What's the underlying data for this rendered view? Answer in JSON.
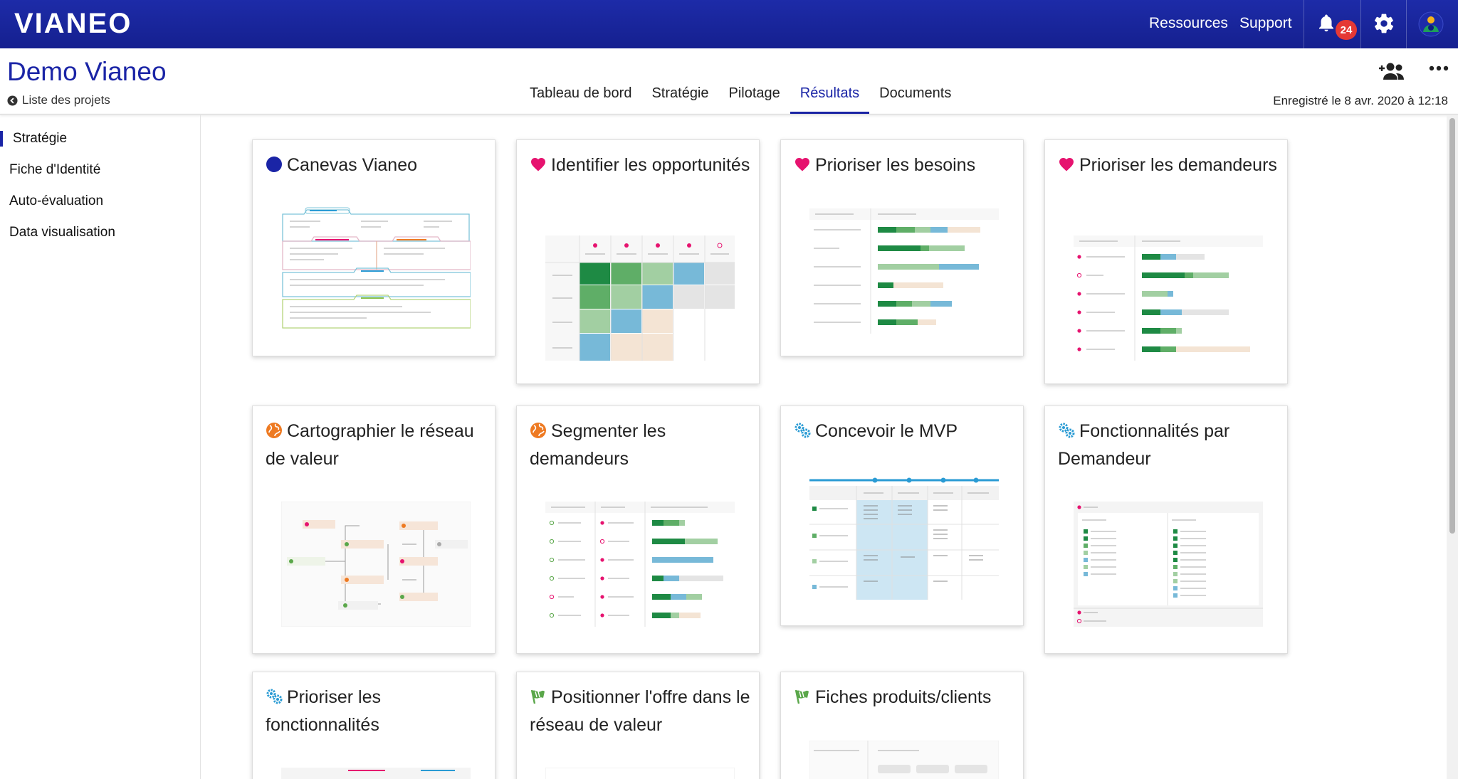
{
  "topbar": {
    "logo": "VIANEO",
    "links": [
      "Ressources",
      "Support"
    ],
    "notifications_count": "24",
    "icons": [
      "bell-icon",
      "gear-icon",
      "avatar-icon"
    ]
  },
  "project": {
    "title": "Demo Vianeo",
    "back_label": "Liste des projets",
    "saved_label": "Enregistré le 8 avr. 2020 à 12:18"
  },
  "tabs": [
    {
      "label": "Tableau de bord",
      "active": false
    },
    {
      "label": "Stratégie",
      "active": false
    },
    {
      "label": "Pilotage",
      "active": false
    },
    {
      "label": "Résultats",
      "active": true
    },
    {
      "label": "Documents",
      "active": false
    }
  ],
  "sidebar": {
    "items": [
      {
        "label": "Stratégie",
        "active": true
      },
      {
        "label": "Fiche d'Identité",
        "active": false
      },
      {
        "label": "Auto-évaluation",
        "active": false
      },
      {
        "label": "Data visualisation",
        "active": false
      }
    ]
  },
  "cards": [
    {
      "title": "Canevas Vianeo",
      "icon": "circle-icon",
      "color": "#1a24a6"
    },
    {
      "title": "Identifier les opportunités",
      "icon": "heart-icon",
      "color": "#e6136f"
    },
    {
      "title": "Prioriser les besoins",
      "icon": "heart-icon",
      "color": "#e6136f"
    },
    {
      "title": "Prioriser les demandeurs",
      "icon": "heart-icon",
      "color": "#e6136f"
    },
    {
      "title": "Cartographier le réseau de valeur",
      "icon": "globe-icon",
      "color": "#ee7a22"
    },
    {
      "title": "Segmenter les demandeurs",
      "icon": "globe-icon",
      "color": "#ee7a22"
    },
    {
      "title": "Concevoir le MVP",
      "icon": "gears-icon",
      "color": "#2a9bd4"
    },
    {
      "title": "Fonctionnalités par Demandeur",
      "icon": "gears-icon",
      "color": "#2a9bd4"
    },
    {
      "title": "Prioriser les fonctionnalités",
      "icon": "gears-icon",
      "color": "#2a9bd4"
    },
    {
      "title": "Positionner l'offre dans le réseau de valeur",
      "icon": "flag-icon",
      "color": "#5aa74a"
    },
    {
      "title": "Fiches produits/clients",
      "icon": "flag-icon",
      "color": "#5aa74a"
    }
  ]
}
